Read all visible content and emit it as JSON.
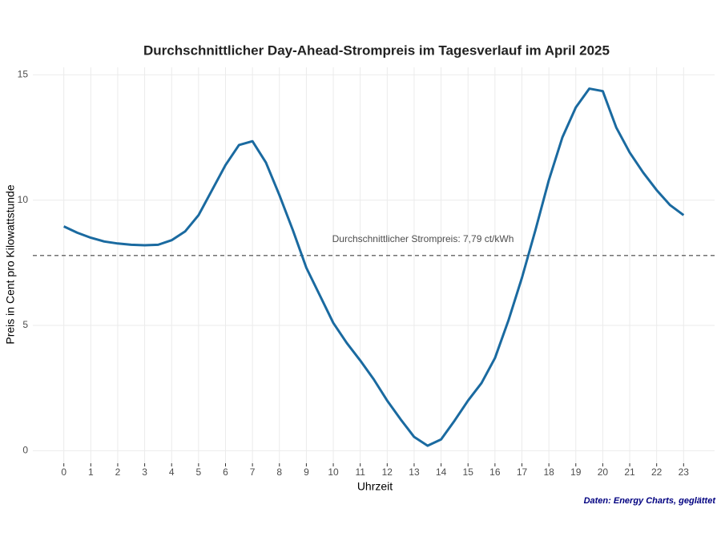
{
  "chart_data": {
    "type": "line",
    "title": "Durchschnittlicher Day-Ahead-Strompreis im Tagesverlauf im April 2025",
    "x_label": "Uhrzeit",
    "y_label": "Preis in Cent pro Kilowattstunde",
    "caption": "Daten: Energy Charts, geglättet",
    "x": [
      0,
      0.5,
      1,
      1.5,
      2,
      2.5,
      3,
      3.5,
      4,
      4.5,
      5,
      5.5,
      6,
      6.5,
      7,
      7.5,
      8,
      8.5,
      9,
      9.5,
      10,
      10.5,
      11,
      11.5,
      12,
      12.5,
      13,
      13.5,
      14,
      14.5,
      15,
      15.5,
      16,
      16.5,
      17,
      17.5,
      18,
      18.5,
      19,
      19.5,
      20,
      20.5,
      21,
      21.5,
      22,
      22.5,
      23
    ],
    "series": [
      {
        "color": "#1a6aa0",
        "values": [
          8.95,
          8.7,
          8.5,
          8.35,
          8.27,
          8.22,
          8.2,
          8.22,
          8.4,
          8.75,
          9.4,
          10.4,
          11.4,
          12.2,
          12.35,
          11.5,
          10.2,
          8.8,
          7.3,
          6.2,
          5.1,
          4.3,
          3.6,
          2.85,
          2.0,
          1.25,
          0.55,
          0.2,
          0.45,
          1.2,
          2.0,
          2.7,
          3.7,
          5.2,
          6.9,
          8.8,
          10.8,
          12.5,
          13.7,
          14.45,
          14.35,
          12.9,
          11.9,
          11.1,
          10.4,
          9.8,
          9.4
        ]
      }
    ],
    "reference_line": {
      "value": 7.79,
      "label": "Durchschnittlicher Strompreis: 7,79 ct/kWh"
    },
    "xlim": [
      -1.15,
      24.15
    ],
    "ylim": [
      -0.5,
      15.3
    ],
    "xticks": [
      0,
      1,
      2,
      3,
      4,
      5,
      6,
      7,
      8,
      9,
      10,
      11,
      12,
      13,
      14,
      15,
      16,
      17,
      18,
      19,
      20,
      21,
      22,
      23
    ],
    "yticks": [
      0,
      5,
      10,
      15
    ],
    "grid": true
  }
}
